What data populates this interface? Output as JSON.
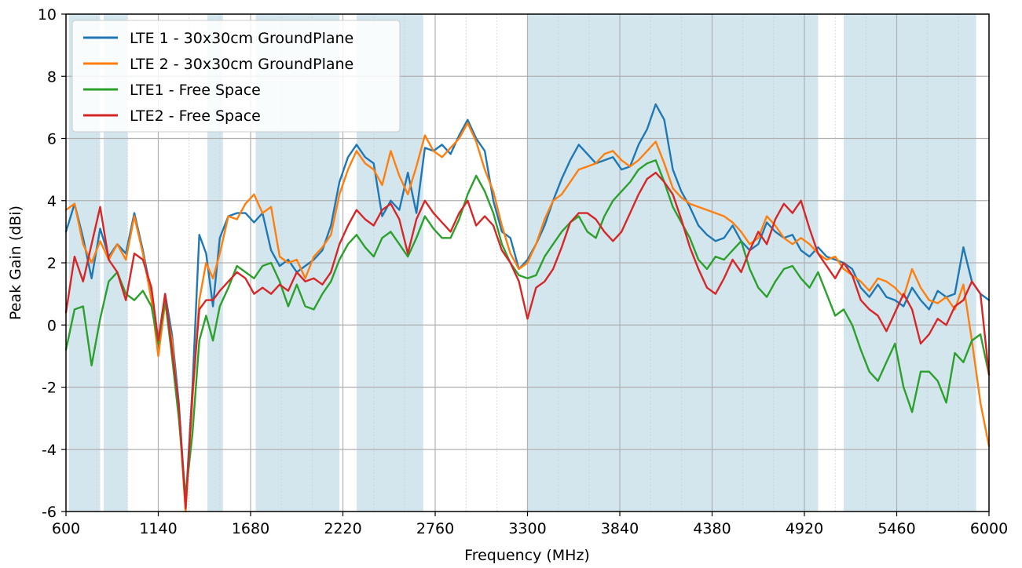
{
  "chart_data": {
    "type": "line",
    "xlabel": "Frequency (MHz)",
    "ylabel": "Peak Gain (dBi)",
    "xlim": [
      600,
      6000
    ],
    "ylim": [
      -6,
      10
    ],
    "xticks": [
      "600",
      "1140",
      "1680",
      "2220",
      "2760",
      "3300",
      "3840",
      "4380",
      "4920",
      "5460",
      "6000"
    ],
    "yticks": [
      "10",
      "8",
      "6",
      "4",
      "2",
      "0",
      "-2",
      "-4",
      "-6"
    ],
    "grid": true,
    "legend_position": "top-left",
    "colors": {
      "band_shading": "#d3e6ee",
      "grid_major": "#b0b0b0",
      "grid_minor": "#d0d0d0"
    },
    "shaded_bands": [
      [
        617,
        800
      ],
      [
        820,
        960
      ],
      [
        1427,
        1518
      ],
      [
        1710,
        2200
      ],
      [
        2300,
        2690
      ],
      [
        3300,
        5000
      ],
      [
        5150,
        5925
      ]
    ],
    "series": [
      {
        "name": "LTE 1 - 30x30cm GroundPlane",
        "color": "#1f77b4",
        "x": [
          600,
          650,
          700,
          750,
          800,
          850,
          900,
          950,
          1000,
          1050,
          1100,
          1140,
          1180,
          1220,
          1260,
          1300,
          1340,
          1380,
          1420,
          1460,
          1500,
          1550,
          1600,
          1650,
          1700,
          1750,
          1800,
          1850,
          1900,
          1950,
          2000,
          2050,
          2100,
          2150,
          2200,
          2250,
          2300,
          2350,
          2400,
          2450,
          2500,
          2550,
          2600,
          2650,
          2700,
          2750,
          2800,
          2850,
          2900,
          2950,
          3000,
          3050,
          3100,
          3150,
          3200,
          3250,
          3300,
          3350,
          3400,
          3450,
          3500,
          3550,
          3600,
          3650,
          3700,
          3750,
          3800,
          3850,
          3900,
          3950,
          4000,
          4050,
          4100,
          4150,
          4200,
          4250,
          4300,
          4350,
          4400,
          4450,
          4500,
          4550,
          4600,
          4650,
          4700,
          4750,
          4800,
          4850,
          4900,
          4950,
          5000,
          5050,
          5100,
          5150,
          5200,
          5250,
          5300,
          5350,
          5400,
          5450,
          5500,
          5550,
          5600,
          5650,
          5700,
          5750,
          5800,
          5850,
          5900,
          5950,
          6000
        ],
        "values": [
          3.0,
          3.9,
          2.8,
          1.5,
          3.1,
          2.2,
          2.6,
          2.3,
          3.6,
          2.4,
          1.0,
          -0.8,
          1.0,
          -0.3,
          -2.5,
          -5.8,
          -2.0,
          2.9,
          2.3,
          0.6,
          2.8,
          3.5,
          3.6,
          3.6,
          3.3,
          3.6,
          2.4,
          1.9,
          2.1,
          1.7,
          1.9,
          2.1,
          2.4,
          3.2,
          4.6,
          5.4,
          5.8,
          5.4,
          5.2,
          3.5,
          4.0,
          3.7,
          4.9,
          3.6,
          5.7,
          5.6,
          5.8,
          5.5,
          6.1,
          6.6,
          6.0,
          5.6,
          4.0,
          3.0,
          2.8,
          1.8,
          2.1,
          2.6,
          3.2,
          4.0,
          4.7,
          5.3,
          5.8,
          5.5,
          5.2,
          5.3,
          5.4,
          5.0,
          5.1,
          5.8,
          6.3,
          7.1,
          6.6,
          5.0,
          4.3,
          3.8,
          3.2,
          2.9,
          2.7,
          2.8,
          3.2,
          2.7,
          2.4,
          2.6,
          3.3,
          3.0,
          2.8,
          2.9,
          2.4,
          2.2,
          2.5,
          2.2,
          2.1,
          2.0,
          1.8,
          1.2,
          0.9,
          1.3,
          0.9,
          0.8,
          0.6,
          1.2,
          0.8,
          0.5,
          1.1,
          0.9,
          1.0,
          2.5,
          1.4,
          1.0,
          0.8
        ]
      },
      {
        "name": "LTE 2 - 30x30cm GroundPlane",
        "color": "#ff7f0e",
        "x": [
          600,
          650,
          700,
          750,
          800,
          850,
          900,
          950,
          1000,
          1050,
          1100,
          1140,
          1180,
          1220,
          1260,
          1300,
          1340,
          1380,
          1420,
          1460,
          1500,
          1550,
          1600,
          1650,
          1700,
          1750,
          1800,
          1850,
          1900,
          1950,
          2000,
          2050,
          2100,
          2150,
          2200,
          2250,
          2300,
          2350,
          2400,
          2450,
          2500,
          2550,
          2600,
          2650,
          2700,
          2750,
          2800,
          2850,
          2900,
          2950,
          3000,
          3050,
          3100,
          3150,
          3200,
          3250,
          3300,
          3350,
          3400,
          3450,
          3500,
          3550,
          3600,
          3650,
          3700,
          3750,
          3800,
          3850,
          3900,
          3950,
          4000,
          4050,
          4100,
          4150,
          4200,
          4250,
          4300,
          4350,
          4400,
          4450,
          4500,
          4550,
          4600,
          4650,
          4700,
          4750,
          4800,
          4850,
          4900,
          4950,
          5000,
          5050,
          5100,
          5150,
          5200,
          5250,
          5300,
          5350,
          5400,
          5450,
          5500,
          5550,
          5600,
          5650,
          5700,
          5750,
          5800,
          5850,
          5900,
          5950,
          6000
        ],
        "values": [
          3.7,
          3.9,
          2.6,
          2.0,
          2.7,
          2.1,
          2.6,
          2.1,
          3.5,
          2.3,
          0.8,
          -1.0,
          0.7,
          -0.5,
          -2.8,
          -6.0,
          -2.4,
          0.8,
          2.0,
          1.5,
          2.3,
          3.5,
          3.4,
          3.9,
          4.2,
          3.6,
          3.8,
          2.2,
          2.0,
          2.1,
          1.5,
          2.2,
          2.5,
          2.9,
          4.2,
          5.0,
          5.6,
          5.2,
          5.0,
          4.5,
          5.6,
          4.8,
          4.2,
          5.1,
          6.1,
          5.6,
          5.4,
          5.7,
          6.0,
          6.5,
          5.9,
          5.0,
          4.3,
          3.2,
          2.3,
          1.8,
          2.0,
          2.6,
          3.4,
          4.0,
          4.2,
          4.6,
          5.0,
          5.1,
          5.2,
          5.5,
          5.6,
          5.3,
          5.1,
          5.3,
          5.6,
          5.9,
          5.2,
          4.4,
          4.1,
          3.9,
          3.8,
          3.7,
          3.6,
          3.5,
          3.3,
          3.0,
          2.6,
          2.8,
          3.5,
          3.2,
          2.8,
          2.6,
          2.8,
          2.6,
          2.3,
          2.1,
          2.2,
          1.8,
          1.6,
          1.4,
          1.1,
          1.5,
          1.4,
          1.2,
          0.9,
          1.8,
          1.2,
          0.8,
          0.7,
          0.9,
          0.5,
          1.3,
          -0.5,
          -2.5,
          -3.9
        ]
      },
      {
        "name": "LTE1 - Free Space",
        "color": "#2ca02c",
        "x": [
          600,
          650,
          700,
          750,
          800,
          850,
          900,
          950,
          1000,
          1050,
          1100,
          1140,
          1180,
          1220,
          1260,
          1300,
          1340,
          1380,
          1420,
          1460,
          1500,
          1550,
          1600,
          1650,
          1700,
          1750,
          1800,
          1850,
          1900,
          1950,
          2000,
          2050,
          2100,
          2150,
          2200,
          2250,
          2300,
          2350,
          2400,
          2450,
          2500,
          2550,
          2600,
          2650,
          2700,
          2750,
          2800,
          2850,
          2900,
          2950,
          3000,
          3050,
          3100,
          3150,
          3200,
          3250,
          3300,
          3350,
          3400,
          3450,
          3500,
          3550,
          3600,
          3650,
          3700,
          3750,
          3800,
          3850,
          3900,
          3950,
          4000,
          4050,
          4100,
          4150,
          4200,
          4250,
          4300,
          4350,
          4400,
          4450,
          4500,
          4550,
          4600,
          4650,
          4700,
          4750,
          4800,
          4850,
          4900,
          4950,
          5000,
          5050,
          5100,
          5150,
          5200,
          5250,
          5300,
          5350,
          5400,
          5450,
          5500,
          5550,
          5600,
          5650,
          5700,
          5750,
          5800,
          5850,
          5900,
          5950,
          6000
        ],
        "values": [
          -0.8,
          0.5,
          0.6,
          -1.3,
          0.2,
          1.4,
          1.7,
          1.0,
          0.8,
          1.1,
          0.6,
          -0.6,
          0.8,
          -1.0,
          -3.0,
          -5.5,
          -3.5,
          -0.5,
          0.3,
          -0.5,
          0.6,
          1.2,
          1.9,
          1.7,
          1.5,
          1.9,
          2.0,
          1.4,
          0.6,
          1.3,
          0.6,
          0.5,
          1.0,
          1.4,
          2.1,
          2.6,
          2.9,
          2.5,
          2.2,
          2.8,
          3.0,
          2.6,
          2.2,
          2.8,
          3.5,
          3.1,
          2.8,
          2.8,
          3.4,
          4.2,
          4.8,
          4.3,
          3.6,
          2.6,
          2.0,
          1.6,
          1.5,
          1.6,
          2.2,
          2.6,
          3.0,
          3.3,
          3.5,
          3.0,
          2.8,
          3.5,
          4.0,
          4.3,
          4.6,
          5.0,
          5.2,
          5.3,
          4.6,
          3.8,
          3.3,
          2.8,
          2.1,
          1.8,
          2.2,
          2.1,
          2.4,
          2.7,
          1.8,
          1.2,
          0.9,
          1.4,
          1.8,
          1.9,
          1.5,
          1.2,
          1.7,
          1.0,
          0.3,
          0.5,
          0.0,
          -0.8,
          -1.5,
          -1.8,
          -1.2,
          -0.6,
          -2.0,
          -2.8,
          -1.5,
          -1.5,
          -1.8,
          -2.5,
          -0.9,
          -1.2,
          -0.5,
          -0.3,
          -1.6
        ]
      },
      {
        "name": "LTE2 - Free Space",
        "color": "#d62728",
        "x": [
          600,
          650,
          700,
          750,
          800,
          850,
          900,
          950,
          1000,
          1050,
          1100,
          1140,
          1180,
          1220,
          1260,
          1300,
          1340,
          1380,
          1420,
          1460,
          1500,
          1550,
          1600,
          1650,
          1700,
          1750,
          1800,
          1850,
          1900,
          1950,
          2000,
          2050,
          2100,
          2150,
          2200,
          2250,
          2300,
          2350,
          2400,
          2450,
          2500,
          2550,
          2600,
          2650,
          2700,
          2750,
          2800,
          2850,
          2900,
          2950,
          3000,
          3050,
          3100,
          3150,
          3200,
          3250,
          3300,
          3350,
          3400,
          3450,
          3500,
          3550,
          3600,
          3650,
          3700,
          3750,
          3800,
          3850,
          3900,
          3950,
          4000,
          4050,
          4100,
          4150,
          4200,
          4250,
          4300,
          4350,
          4400,
          4450,
          4500,
          4550,
          4600,
          4650,
          4700,
          4750,
          4800,
          4850,
          4900,
          4950,
          5000,
          5050,
          5100,
          5150,
          5200,
          5250,
          5300,
          5350,
          5400,
          5450,
          5500,
          5550,
          5600,
          5650,
          5700,
          5750,
          5800,
          5850,
          5900,
          5950,
          6000
        ],
        "values": [
          0.4,
          2.2,
          1.4,
          2.6,
          3.8,
          2.1,
          1.7,
          0.8,
          2.3,
          2.1,
          1.2,
          -0.5,
          1.0,
          -0.8,
          -2.6,
          -5.9,
          -2.2,
          0.5,
          0.8,
          0.8,
          1.1,
          1.4,
          1.7,
          1.5,
          1.0,
          1.2,
          1.0,
          1.3,
          1.1,
          1.7,
          1.4,
          1.5,
          1.3,
          1.7,
          2.6,
          3.2,
          3.7,
          3.4,
          3.2,
          3.7,
          3.9,
          3.4,
          2.3,
          3.4,
          4.0,
          3.6,
          3.3,
          3.0,
          3.6,
          4.0,
          3.2,
          3.5,
          3.2,
          2.4,
          2.0,
          1.4,
          0.2,
          1.2,
          1.4,
          1.8,
          2.5,
          3.3,
          3.6,
          3.6,
          3.4,
          3.0,
          2.7,
          3.0,
          3.6,
          4.2,
          4.7,
          4.9,
          4.6,
          4.2,
          3.4,
          2.5,
          1.8,
          1.2,
          1.0,
          1.5,
          2.1,
          1.7,
          2.4,
          3.0,
          2.6,
          3.4,
          3.9,
          3.6,
          4.0,
          3.1,
          2.3,
          1.9,
          1.5,
          2.0,
          1.6,
          0.8,
          0.5,
          0.3,
          -0.2,
          0.4,
          1.0,
          0.5,
          -0.6,
          -0.3,
          0.2,
          0.0,
          0.6,
          0.8,
          1.4,
          1.0,
          -1.6
        ]
      }
    ]
  }
}
